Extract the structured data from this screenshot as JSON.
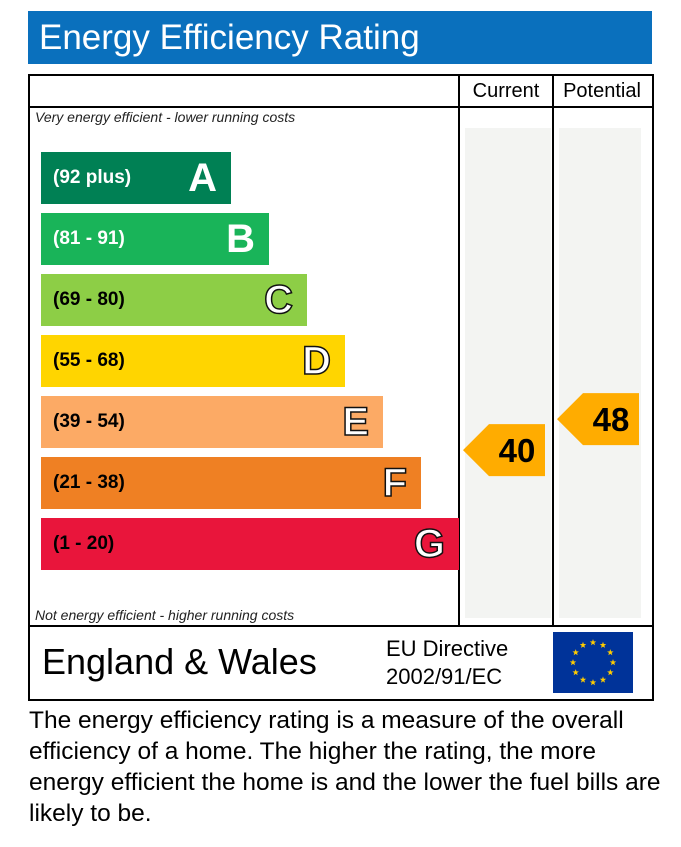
{
  "title": "Energy Efficiency Rating",
  "columns": {
    "current": "Current",
    "potential": "Potential"
  },
  "top_note": "Very energy efficient - lower running costs",
  "bottom_note": "Not energy efficient - higher running costs",
  "chart_data": {
    "type": "bar",
    "categories": [
      "A",
      "B",
      "C",
      "D",
      "E",
      "F",
      "G"
    ],
    "bands": [
      {
        "letter": "A",
        "range": "(92 plus)",
        "min": 92,
        "max": 100,
        "color": "#008054"
      },
      {
        "letter": "B",
        "range": "(81 - 91)",
        "min": 81,
        "max": 91,
        "color": "#19b459"
      },
      {
        "letter": "C",
        "range": "(69 - 80)",
        "min": 69,
        "max": 80,
        "color": "#8dce46"
      },
      {
        "letter": "D",
        "range": "(55 - 68)",
        "min": 55,
        "max": 68,
        "color": "#ffd500"
      },
      {
        "letter": "E",
        "range": "(39 - 54)",
        "min": 39,
        "max": 54,
        "color": "#fcaa65"
      },
      {
        "letter": "F",
        "range": "(21 - 38)",
        "min": 21,
        "max": 38,
        "color": "#ef8023"
      },
      {
        "letter": "G",
        "range": "(1 - 20)",
        "min": 1,
        "max": 20,
        "color": "#e9153b"
      }
    ],
    "current_rating": {
      "value": 40,
      "band": "E"
    },
    "potential_rating": {
      "value": 48,
      "band": "E"
    },
    "marker_color": "#ffac00"
  },
  "footer": {
    "region": "England & Wales",
    "directive_line1": "EU Directive",
    "directive_line2": "2002/91/EC",
    "flag_icon": "eu-flag-icon",
    "flag_color": "#003399",
    "star_color": "#ffcc00"
  },
  "caption": "The energy efficiency rating is a measure of the overall efficiency of a home. The higher the rating, the more energy efficient the home is and the lower the fuel bills are likely to be."
}
